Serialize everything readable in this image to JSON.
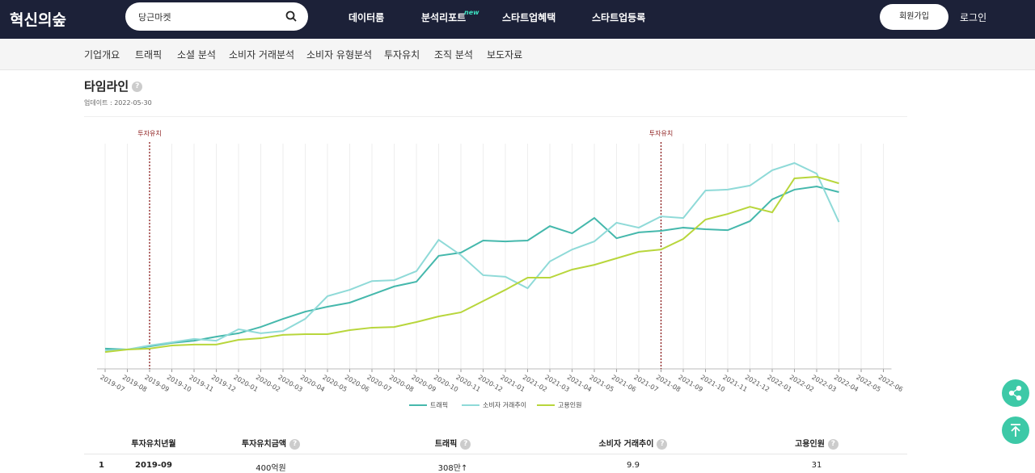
{
  "header": {
    "logo": "혁신의숲",
    "search": "당근마켓",
    "menu": [
      "데이터룸",
      "분석리포트",
      "스타트업혜택",
      "스타트업등록"
    ],
    "new_tag": "new",
    "join": "회원가입",
    "login": "로그인"
  },
  "subnav": [
    "기업개요",
    "트래픽",
    "소셜 분석",
    "소비자 거래분석",
    "소비자 유형분석",
    "투자유치",
    "조직 분석",
    "보도자료"
  ],
  "section": {
    "title": "타임라인",
    "updated": "업데이트 : 2022-05-30"
  },
  "chart_data": {
    "type": "line",
    "categories": [
      "2019-07",
      "2019-08",
      "2019-09",
      "2019-10",
      "2019-11",
      "2019-12",
      "2020-01",
      "2020-02",
      "2020-03",
      "2020-04",
      "2020-05",
      "2020-06",
      "2020-07",
      "2020-08",
      "2020-09",
      "2020-10",
      "2020-11",
      "2020-12",
      "2021-01",
      "2021-02",
      "2021-03",
      "2021-04",
      "2021-05",
      "2021-06",
      "2021-07",
      "2021-08",
      "2021-09",
      "2021-10",
      "2021-11",
      "2021-12",
      "2022-01",
      "2022-02",
      "2022-03",
      "2022-04",
      "2022-05",
      "2022-06"
    ],
    "ylim": [
      0,
      100
    ],
    "legend": "bottom",
    "annotations": [
      {
        "label": "투자유치",
        "x": "2019-09",
        "color": "#8b1a1a"
      },
      {
        "label": "투자유치",
        "x": "2021-08",
        "color": "#8b1a1a"
      }
    ],
    "series": [
      {
        "name": "트래픽",
        "color": "#45b8ac",
        "values": [
          9,
          8.6,
          10,
          11.5,
          12.5,
          14.3,
          15.8,
          18.6,
          22.2,
          25.4,
          27.6,
          29.4,
          33,
          36.6,
          38.7,
          50.2,
          51.6,
          57,
          56.6,
          57,
          63.4,
          60.2,
          67,
          58,
          60.6,
          61.3,
          62.7,
          62,
          61.6,
          65.6,
          75.3,
          79.6,
          81,
          78.5,
          null,
          null
        ]
      },
      {
        "name": "소비자 거래추이",
        "color": "#8fdad8",
        "values": [
          8.2,
          8.6,
          10.4,
          11.8,
          13.3,
          12.5,
          17.6,
          15.8,
          16.8,
          22.2,
          32.3,
          35.1,
          39,
          39.4,
          43.4,
          57.3,
          50.5,
          41.6,
          40.9,
          35.8,
          47.7,
          53,
          56.6,
          64.9,
          62.7,
          67.7,
          67,
          79.2,
          79.6,
          81.4,
          88.2,
          91.4,
          86.7,
          65.2,
          null,
          null
        ]
      },
      {
        "name": "고용인원",
        "color": "#b8d63c",
        "values": [
          7.5,
          8.6,
          9,
          10.4,
          10.8,
          10.8,
          12.9,
          13.6,
          15.1,
          15.4,
          15.4,
          17.2,
          18.3,
          18.6,
          20.8,
          23.3,
          25.1,
          30.1,
          35.1,
          40.5,
          40.5,
          44.1,
          46.2,
          49.1,
          52,
          53,
          57.7,
          66.3,
          68.8,
          72,
          69.5,
          84.6,
          85.3,
          82.4,
          null,
          null
        ]
      }
    ]
  },
  "table": {
    "headers": [
      "투자유치년월",
      "투자유치금액",
      "트래픽",
      "소비자 거래추이",
      "고용인원"
    ],
    "rows": [
      [
        "1",
        "2019-09",
        "400억원",
        "308만↑",
        "9.9",
        "31"
      ]
    ]
  }
}
